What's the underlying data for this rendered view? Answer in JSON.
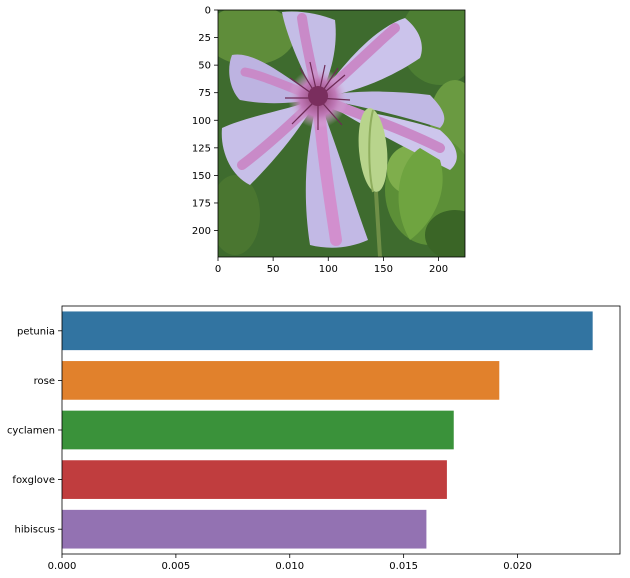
{
  "chart_data": [
    {
      "type": "image",
      "image": {
        "subject": "flower-photo",
        "xlim": [
          0,
          224
        ],
        "ylim": [
          224,
          0
        ],
        "xticks": [
          0,
          50,
          100,
          150,
          200
        ],
        "yticks": [
          0,
          25,
          50,
          75,
          100,
          125,
          150,
          175,
          200
        ],
        "colors": {
          "petal_light": "#c4bde6",
          "petal_pink": "#c98ac8",
          "petal_shadow": "#a79fd0",
          "stamen": "#6d2a55",
          "leaf": "#5f8d3a",
          "leaf_dark": "#2f5b26",
          "bud": "#b8d48c"
        }
      }
    },
    {
      "type": "bar",
      "orientation": "horizontal",
      "categories": [
        "petunia",
        "rose",
        "cyclamen",
        "foxglove",
        "hibiscus"
      ],
      "values": [
        0.0233,
        0.0192,
        0.0172,
        0.0169,
        0.016
      ],
      "colors": [
        "#3274a1",
        "#e1812c",
        "#3a923a",
        "#c03d3e",
        "#9372b2"
      ],
      "xlim": [
        0,
        0.0245
      ],
      "xticks": [
        0.0,
        0.005,
        0.01,
        0.015,
        0.02
      ],
      "xtick_labels": [
        "0.000",
        "0.005",
        "0.010",
        "0.015",
        "0.020"
      ],
      "xlabel": "",
      "ylabel": "",
      "grid": false
    }
  ]
}
